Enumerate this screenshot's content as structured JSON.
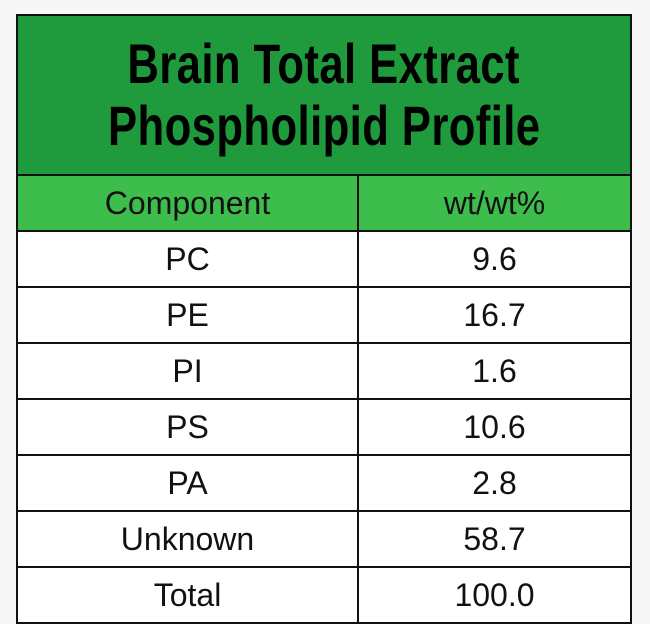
{
  "title": [
    "Brain Total Extract",
    "Phospholipid Profile"
  ],
  "colors": {
    "title_bg": "#1f9a3c",
    "header_bg": "#3dbd4c"
  },
  "headers": [
    "Component",
    "wt/wt%"
  ],
  "rows": [
    [
      "PC",
      "9.6"
    ],
    [
      "PE",
      "16.7"
    ],
    [
      "PI",
      "1.6"
    ],
    [
      "PS",
      "10.6"
    ],
    [
      "PA",
      "2.8"
    ],
    [
      "Unknown",
      "58.7"
    ],
    [
      "Total",
      "100.0"
    ]
  ]
}
